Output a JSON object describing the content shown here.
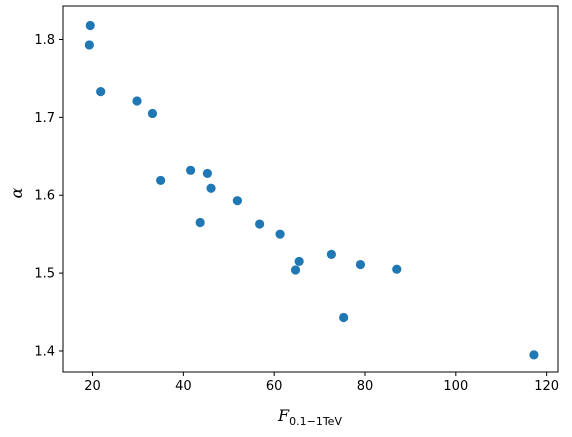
{
  "chart_data": {
    "type": "scatter",
    "title": "",
    "xlabel": {
      "main": "F",
      "sub": "0.1−1TeV"
    },
    "ylabel": "α",
    "xlim": [
      13.5,
      122.5
    ],
    "ylim": [
      1.373,
      1.843
    ],
    "xticks": [
      20,
      40,
      60,
      80,
      100,
      120
    ],
    "yticks": [
      1.4,
      1.5,
      1.6,
      1.7,
      1.8
    ],
    "grid": false,
    "marker_color": "#1f77b4",
    "points": [
      {
        "x": 19.5,
        "y": 1.818
      },
      {
        "x": 19.3,
        "y": 1.793
      },
      {
        "x": 21.8,
        "y": 1.733
      },
      {
        "x": 29.8,
        "y": 1.721
      },
      {
        "x": 33.2,
        "y": 1.705
      },
      {
        "x": 35.0,
        "y": 1.619
      },
      {
        "x": 41.6,
        "y": 1.632
      },
      {
        "x": 43.7,
        "y": 1.565
      },
      {
        "x": 45.3,
        "y": 1.628
      },
      {
        "x": 46.1,
        "y": 1.609
      },
      {
        "x": 51.9,
        "y": 1.593
      },
      {
        "x": 56.8,
        "y": 1.563
      },
      {
        "x": 61.3,
        "y": 1.55
      },
      {
        "x": 64.7,
        "y": 1.504
      },
      {
        "x": 65.5,
        "y": 1.515
      },
      {
        "x": 72.6,
        "y": 1.524
      },
      {
        "x": 75.3,
        "y": 1.443
      },
      {
        "x": 79.0,
        "y": 1.511
      },
      {
        "x": 87.0,
        "y": 1.505
      },
      {
        "x": 117.2,
        "y": 1.395
      }
    ]
  }
}
